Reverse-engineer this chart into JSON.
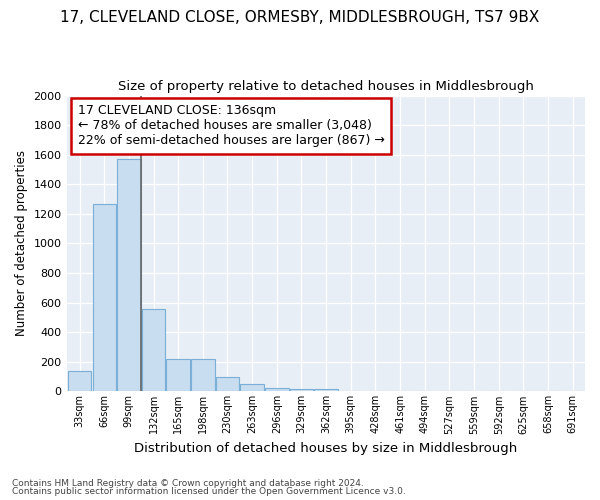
{
  "title_line1": "17, CLEVELAND CLOSE, ORMESBY, MIDDLESBROUGH, TS7 9BX",
  "title_line2": "Size of property relative to detached houses in Middlesbrough",
  "xlabel": "Distribution of detached houses by size in Middlesbrough",
  "ylabel": "Number of detached properties",
  "footnote_line1": "Contains HM Land Registry data © Crown copyright and database right 2024.",
  "footnote_line2": "Contains public sector information licensed under the Open Government Licence v3.0.",
  "categories": [
    "33sqm",
    "66sqm",
    "99sqm",
    "132sqm",
    "165sqm",
    "198sqm",
    "230sqm",
    "263sqm",
    "296sqm",
    "329sqm",
    "362sqm",
    "395sqm",
    "428sqm",
    "461sqm",
    "494sqm",
    "527sqm",
    "559sqm",
    "592sqm",
    "625sqm",
    "658sqm",
    "691sqm"
  ],
  "values": [
    140,
    1265,
    1570,
    560,
    220,
    220,
    95,
    50,
    25,
    15,
    15,
    0,
    0,
    0,
    0,
    0,
    0,
    0,
    0,
    0,
    0
  ],
  "bar_color": "#c8ddf0",
  "bar_edge_color": "#7ab0d8",
  "annotation_line1": "17 CLEVELAND CLOSE: 136sqm",
  "annotation_line2": "← 78% of detached houses are smaller (3,048)",
  "annotation_line3": "22% of semi-detached houses are larger (867) →",
  "annotation_box_facecolor": "#ffffff",
  "annotation_box_edgecolor": "#cc0000",
  "vline_index": 3,
  "vline_color": "#666666",
  "ylim_max": 2000,
  "yticks": [
    0,
    200,
    400,
    600,
    800,
    1000,
    1200,
    1400,
    1600,
    1800,
    2000
  ],
  "plot_bg_color": "#e8eef5",
  "fig_bg_color": "#ffffff",
  "grid_color": "#ffffff",
  "title1_fontsize": 11,
  "title2_fontsize": 9.5,
  "xlabel_fontsize": 9.5,
  "ylabel_fontsize": 8.5,
  "ytick_fontsize": 8,
  "xtick_fontsize": 7,
  "annot_fontsize": 9,
  "footnote_fontsize": 6.5
}
